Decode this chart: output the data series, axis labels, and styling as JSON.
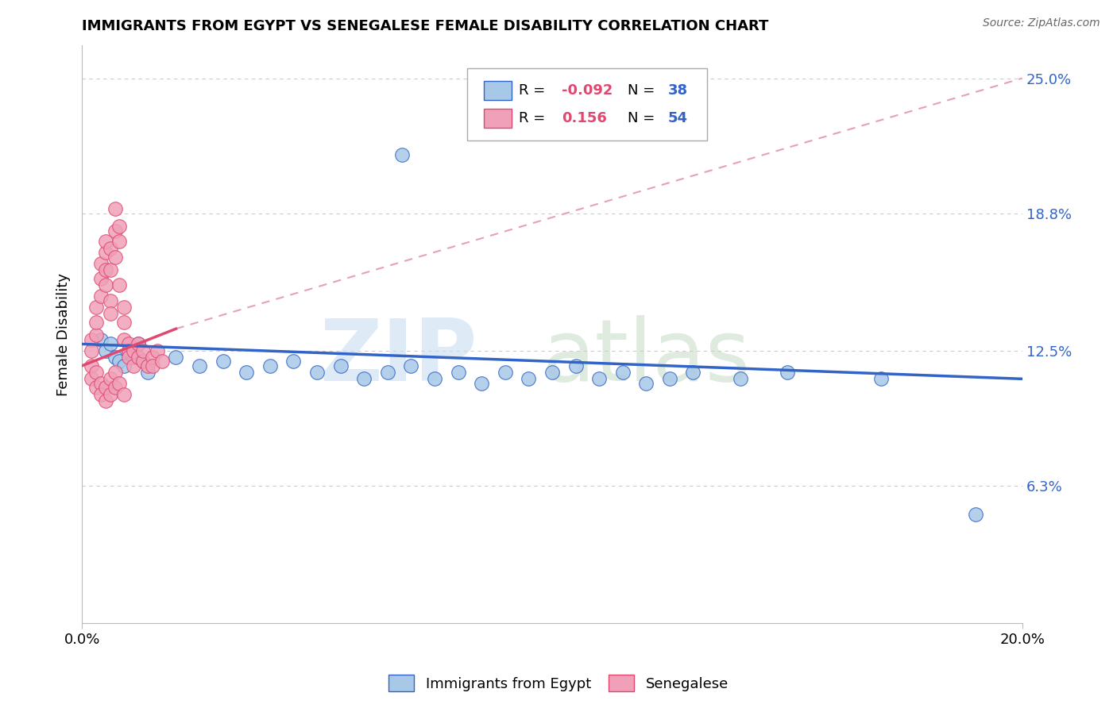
{
  "title": "IMMIGRANTS FROM EGYPT VS SENEGALESE FEMALE DISABILITY CORRELATION CHART",
  "source": "Source: ZipAtlas.com",
  "ylabel": "Female Disability",
  "xlim": [
    0.0,
    0.2
  ],
  "ylim": [
    0.0,
    0.265
  ],
  "xtick_positions": [
    0.0,
    0.2
  ],
  "xtick_labels": [
    "0.0%",
    "20.0%"
  ],
  "ytick_labels": [
    "6.3%",
    "12.5%",
    "18.8%",
    "25.0%"
  ],
  "ytick_positions": [
    0.063,
    0.125,
    0.188,
    0.25
  ],
  "color_blue": "#a8c8e8",
  "color_pink": "#f0a0b8",
  "line_color_blue": "#3264c8",
  "line_color_pink": "#e04870",
  "line_color_dashed": "#e8a0b8",
  "watermark_zip": "ZIP",
  "watermark_atlas": "atlas",
  "blue_scatter": [
    [
      0.004,
      0.13
    ],
    [
      0.005,
      0.125
    ],
    [
      0.006,
      0.128
    ],
    [
      0.007,
      0.122
    ],
    [
      0.008,
      0.12
    ],
    [
      0.009,
      0.118
    ],
    [
      0.01,
      0.125
    ],
    [
      0.011,
      0.122
    ],
    [
      0.012,
      0.128
    ],
    [
      0.013,
      0.12
    ],
    [
      0.014,
      0.115
    ],
    [
      0.02,
      0.122
    ],
    [
      0.025,
      0.118
    ],
    [
      0.03,
      0.12
    ],
    [
      0.035,
      0.115
    ],
    [
      0.04,
      0.118
    ],
    [
      0.045,
      0.12
    ],
    [
      0.05,
      0.115
    ],
    [
      0.055,
      0.118
    ],
    [
      0.06,
      0.112
    ],
    [
      0.065,
      0.115
    ],
    [
      0.07,
      0.118
    ],
    [
      0.075,
      0.112
    ],
    [
      0.08,
      0.115
    ],
    [
      0.085,
      0.11
    ],
    [
      0.09,
      0.115
    ],
    [
      0.095,
      0.112
    ],
    [
      0.1,
      0.115
    ],
    [
      0.105,
      0.118
    ],
    [
      0.11,
      0.112
    ],
    [
      0.115,
      0.115
    ],
    [
      0.12,
      0.11
    ],
    [
      0.125,
      0.112
    ],
    [
      0.13,
      0.115
    ],
    [
      0.14,
      0.112
    ],
    [
      0.15,
      0.115
    ],
    [
      0.17,
      0.112
    ],
    [
      0.068,
      0.215
    ],
    [
      0.19,
      0.05
    ]
  ],
  "pink_scatter": [
    [
      0.002,
      0.13
    ],
    [
      0.002,
      0.125
    ],
    [
      0.003,
      0.132
    ],
    [
      0.003,
      0.138
    ],
    [
      0.003,
      0.145
    ],
    [
      0.004,
      0.15
    ],
    [
      0.004,
      0.158
    ],
    [
      0.004,
      0.165
    ],
    [
      0.005,
      0.17
    ],
    [
      0.005,
      0.175
    ],
    [
      0.005,
      0.162
    ],
    [
      0.005,
      0.155
    ],
    [
      0.006,
      0.148
    ],
    [
      0.006,
      0.142
    ],
    [
      0.006,
      0.162
    ],
    [
      0.006,
      0.172
    ],
    [
      0.007,
      0.18
    ],
    [
      0.007,
      0.19
    ],
    [
      0.007,
      0.168
    ],
    [
      0.008,
      0.175
    ],
    [
      0.008,
      0.182
    ],
    [
      0.008,
      0.155
    ],
    [
      0.009,
      0.145
    ],
    [
      0.009,
      0.138
    ],
    [
      0.009,
      0.13
    ],
    [
      0.01,
      0.128
    ],
    [
      0.01,
      0.125
    ],
    [
      0.01,
      0.122
    ],
    [
      0.011,
      0.118
    ],
    [
      0.011,
      0.125
    ],
    [
      0.012,
      0.122
    ],
    [
      0.012,
      0.128
    ],
    [
      0.013,
      0.12
    ],
    [
      0.013,
      0.125
    ],
    [
      0.014,
      0.118
    ],
    [
      0.015,
      0.122
    ],
    [
      0.015,
      0.118
    ],
    [
      0.016,
      0.125
    ],
    [
      0.017,
      0.12
    ],
    [
      0.002,
      0.118
    ],
    [
      0.002,
      0.112
    ],
    [
      0.003,
      0.108
    ],
    [
      0.003,
      0.115
    ],
    [
      0.004,
      0.11
    ],
    [
      0.004,
      0.105
    ],
    [
      0.005,
      0.102
    ],
    [
      0.005,
      0.108
    ],
    [
      0.006,
      0.112
    ],
    [
      0.006,
      0.105
    ],
    [
      0.007,
      0.108
    ],
    [
      0.007,
      0.115
    ],
    [
      0.008,
      0.11
    ],
    [
      0.009,
      0.105
    ]
  ],
  "blue_line_x": [
    0.0,
    0.2
  ],
  "blue_line_y": [
    0.128,
    0.112
  ],
  "pink_line_x": [
    0.0,
    0.02
  ],
  "pink_line_y": [
    0.118,
    0.135
  ],
  "dashed_line_x": [
    0.02,
    0.2
  ],
  "dashed_line_y": [
    0.135,
    0.25
  ]
}
